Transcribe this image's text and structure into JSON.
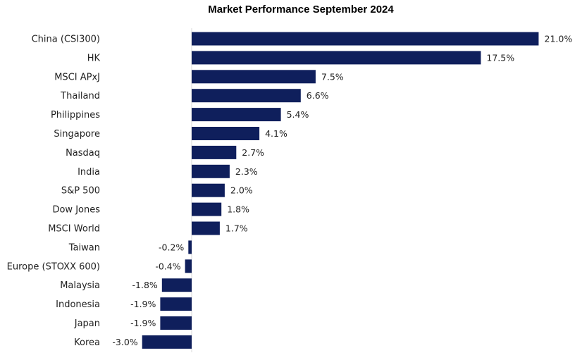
{
  "chart_data": {
    "type": "bar",
    "orientation": "horizontal",
    "title": "Market Performance September 2024",
    "categories": [
      "China (CSI300)",
      "HK",
      "MSCI APxJ",
      "Thailand",
      "Philippines",
      "Singapore",
      "Nasdaq",
      "India",
      "S&P 500",
      "Dow Jones",
      "MSCI World",
      "Taiwan",
      "Europe (STOXX 600)",
      "Malaysia",
      "Indonesia",
      "Japan",
      "Korea"
    ],
    "values": [
      21.0,
      17.5,
      7.5,
      6.6,
      5.4,
      4.1,
      2.7,
      2.3,
      2.0,
      1.8,
      1.7,
      -0.2,
      -0.4,
      -1.8,
      -1.9,
      -1.9,
      -3.0
    ],
    "value_labels": [
      "21.0%",
      "17.5%",
      "7.5%",
      "6.6%",
      "5.4%",
      "4.1%",
      "2.7%",
      "2.3%",
      "2.0%",
      "1.8%",
      "1.7%",
      "-0.2%",
      "-0.4%",
      "-1.8%",
      "-1.9%",
      "-1.9%",
      "-3.0%"
    ],
    "unit": "%",
    "grid": false,
    "legend": "none",
    "bar_color": "#0f1f5c",
    "axis_color": "#d9d9d9"
  }
}
